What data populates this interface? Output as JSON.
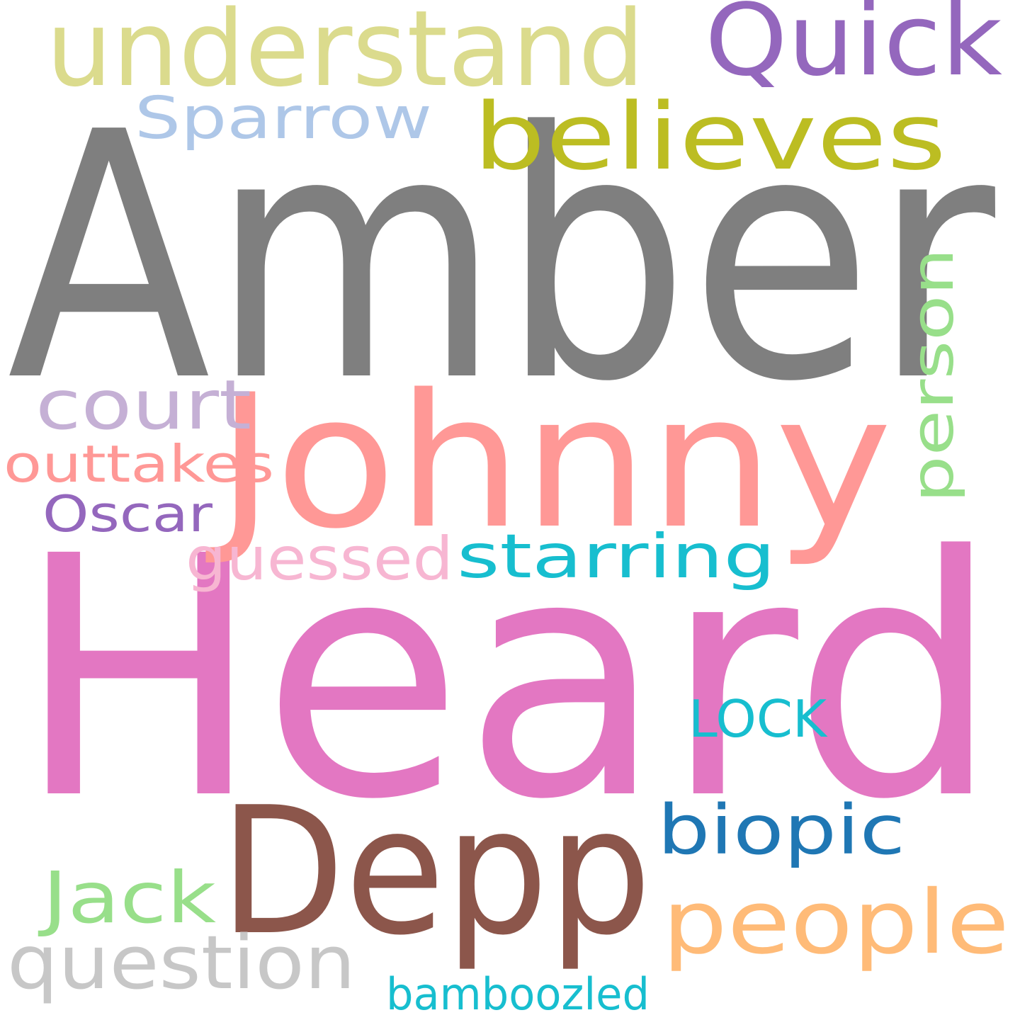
{
  "words": [
    {
      "id": "amber",
      "text": "Amber",
      "color": "#7f7f7f"
    },
    {
      "id": "heard",
      "text": "Heard",
      "color": "#e377c2"
    },
    {
      "id": "johnny",
      "text": "Johnny",
      "color": "#ff9896"
    },
    {
      "id": "depp",
      "text": "Depp",
      "color": "#8c564b"
    },
    {
      "id": "understand",
      "text": "understand",
      "color": "#dbdb8d"
    },
    {
      "id": "quick",
      "text": "Quick",
      "color": "#9467bd"
    },
    {
      "id": "believes",
      "text": "believes",
      "color": "#bcbd22"
    },
    {
      "id": "sparrow",
      "text": "Sparrow",
      "color": "#aec7e8"
    },
    {
      "id": "person",
      "text": "person",
      "color": "#98df8a"
    },
    {
      "id": "court",
      "text": "court",
      "color": "#c5b0d5"
    },
    {
      "id": "outtakes",
      "text": "outtakes",
      "color": "#ff9896"
    },
    {
      "id": "oscar",
      "text": "Oscar",
      "color": "#9467bd"
    },
    {
      "id": "guessed",
      "text": "guessed",
      "color": "#f7b6d2"
    },
    {
      "id": "starring",
      "text": "starring",
      "color": "#17becf"
    },
    {
      "id": "lock",
      "text": "LOCK",
      "color": "#17becf"
    },
    {
      "id": "biopic",
      "text": "biopic",
      "color": "#1f77b4"
    },
    {
      "id": "people",
      "text": "people",
      "color": "#ffbb78"
    },
    {
      "id": "jack",
      "text": "Jack",
      "color": "#98df8a"
    },
    {
      "id": "question",
      "text": "question",
      "color": "#c7c7c7"
    },
    {
      "id": "bamboozled",
      "text": "bamboozled",
      "color": "#17becf"
    }
  ]
}
